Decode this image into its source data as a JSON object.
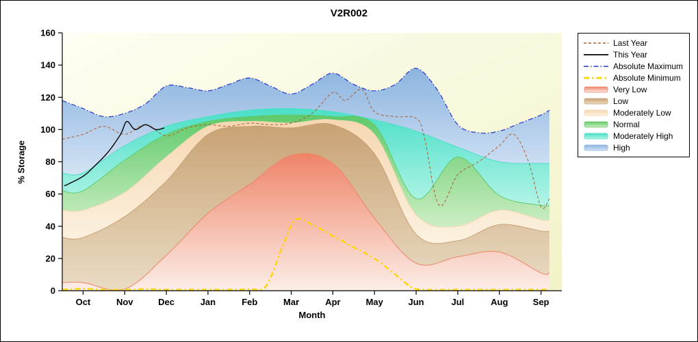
{
  "chart_data": {
    "type": "area",
    "title": "V2R002",
    "xlabel": "Month",
    "ylabel": "% Storage",
    "ylim": [
      0,
      160
    ],
    "y_ticks": [
      0,
      20,
      40,
      60,
      80,
      100,
      120,
      140,
      160
    ],
    "months": [
      "Oct",
      "Nov",
      "Dec",
      "Jan",
      "Feb",
      "Mar",
      "Apr",
      "May",
      "Jun",
      "Jul",
      "Aug",
      "Sep"
    ],
    "legend_position": "right",
    "plot_background": {
      "top_left": "#fefef3",
      "bottom_right": "#f3f3c9"
    },
    "bands": [
      {
        "label": "Very Low",
        "color_top": "#ef8468",
        "color_bottom": "#fceee8",
        "values": [
          5,
          1,
          22,
          48,
          66,
          84,
          79,
          45,
          17,
          21,
          24,
          11
        ]
      },
      {
        "label": "Low",
        "color_top": "#c8a274",
        "color_bottom": "#eadcc4",
        "values": [
          33,
          46,
          68,
          97,
          102,
          101,
          103,
          85,
          35,
          31,
          41,
          37
        ]
      },
      {
        "label": "Moderately Low",
        "color_top": "#f6d7b2",
        "color_bottom": "#fcf2e0",
        "values": [
          50,
          61,
          83,
          102,
          105,
          104,
          106,
          97,
          47,
          40,
          50,
          44
        ]
      },
      {
        "label": "Normal",
        "color_top": "#5fca6a",
        "color_bottom": "#cdeec4",
        "values": [
          62,
          81,
          97,
          105,
          108,
          109,
          108,
          103,
          57,
          83,
          59,
          53
        ]
      },
      {
        "label": "Moderately High",
        "color_top": "#4adfc8",
        "color_bottom": "#b2f4e6",
        "values": [
          73,
          90,
          102,
          108,
          112,
          113,
          111,
          106,
          99,
          89,
          80,
          79
        ]
      },
      {
        "label": "High",
        "color_top": "#8cb4e0",
        "color_bottom": "#d3e3f4",
        "x": [
          -0.5,
          0,
          0.5,
          1,
          1.5,
          2,
          2.5,
          3,
          3.5,
          4,
          4.5,
          5,
          5.5,
          6,
          6.5,
          7,
          7.5,
          8,
          8.5,
          9,
          9.5,
          10,
          10.5,
          11,
          11.2
        ],
        "values": [
          118,
          113,
          108,
          110,
          116,
          127,
          126,
          124,
          128,
          132,
          127,
          122,
          128,
          135,
          128,
          124,
          128,
          138,
          125,
          103,
          98,
          99,
          104,
          109,
          112
        ]
      }
    ],
    "lines": [
      {
        "label": "Last Year",
        "color": "#ad5a2b",
        "width": 1,
        "dash": "4,3",
        "x": [
          -0.5,
          0,
          0.5,
          1,
          1.5,
          2,
          2.5,
          3,
          3.5,
          4,
          4.5,
          5,
          5.5,
          6,
          6.3,
          6.7,
          7,
          7.5,
          8,
          8.2,
          8.55,
          9,
          9.5,
          10,
          10.35,
          10.7,
          11,
          11.2
        ],
        "y": [
          94,
          97,
          102,
          97,
          103,
          96,
          101,
          103,
          102,
          104,
          103,
          104,
          110,
          123,
          118,
          125,
          111,
          108,
          107,
          95,
          53,
          72,
          80,
          90,
          97,
          80,
          52,
          57
        ]
      },
      {
        "label": "This Year",
        "color": "#000000",
        "width": 1.4,
        "dash": "",
        "x": [
          -0.45,
          0,
          0.3,
          0.6,
          0.9,
          1.05,
          1.25,
          1.5,
          1.75,
          1.95
        ],
        "y": [
          65,
          71,
          78,
          86,
          97,
          105,
          100,
          103,
          100,
          101
        ]
      },
      {
        "label": "Absolute Maximum",
        "color": "#2233cc",
        "width": 1.2,
        "dash": "7,3,1.5,3",
        "x": [
          -0.5,
          0,
          0.5,
          1,
          1.5,
          2,
          2.5,
          3,
          3.5,
          4,
          4.5,
          5,
          5.5,
          6,
          6.5,
          7,
          7.5,
          8,
          8.5,
          9,
          9.5,
          10,
          10.5,
          11,
          11.2
        ],
        "y": [
          118,
          113,
          108,
          110,
          116,
          127,
          126,
          124,
          128,
          132,
          127,
          122,
          128,
          135,
          128,
          124,
          128,
          138,
          125,
          103,
          98,
          99,
          104,
          109,
          112
        ]
      },
      {
        "label": "Absolute Minimum",
        "color": "#ffd400",
        "width": 2.4,
        "dash": "8,4,2.5,4",
        "x": [
          -0.5,
          0,
          0.5,
          1,
          1.5,
          2,
          2.5,
          3,
          3.5,
          4,
          4.4,
          4.8,
          5.1,
          5.5,
          6,
          6.5,
          7,
          7.5,
          7.9,
          8.2,
          9,
          10,
          11,
          11.2
        ],
        "y": [
          0.6,
          1.2,
          0.6,
          0.6,
          1,
          0.6,
          0.6,
          0.6,
          0.6,
          1,
          3,
          28,
          44,
          41,
          34,
          27,
          20,
          10,
          2,
          0.6,
          0.6,
          0.6,
          0.6,
          0.6
        ]
      }
    ]
  }
}
